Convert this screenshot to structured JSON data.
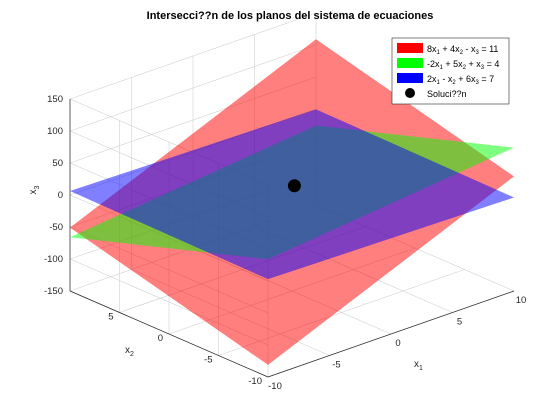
{
  "chart_data": {
    "type": "surface3d",
    "title": "Intersecci??n de los planos del sistema de ecuaciones",
    "xlabel": "x",
    "xlabel_sub": "1",
    "ylabel": "x",
    "ylabel_sub": "2",
    "zlabel": "x",
    "zlabel_sub": "3",
    "xlim": [
      -10,
      10
    ],
    "ylim": [
      -10,
      10
    ],
    "zlim": [
      -150,
      150
    ],
    "x_ticks": [
      "-10",
      "-5",
      "0",
      "5",
      "10"
    ],
    "y_ticks": [
      "-10",
      "-5",
      "0",
      "5"
    ],
    "z_ticks": [
      "-150",
      "-100",
      "-50",
      "0",
      "50",
      "100",
      "150"
    ],
    "grid": true,
    "legend_position": "top-right",
    "planes": [
      {
        "label_html": "8x<tspan baseline-shift='sub' font-size='6'>1</tspan> + 4x<tspan baseline-shift='sub' font-size='6'>2</tspan> - x<tspan baseline-shift='sub' font-size='6'>3</tspan> = 11",
        "legend_parts": [
          "8x",
          "1",
          " + 4x",
          "2",
          " - x",
          "3",
          " = 11"
        ],
        "color": "#ff0000",
        "coef": [
          8,
          4,
          -1
        ],
        "rhs": 11
      },
      {
        "legend_parts": [
          "-2x",
          "1",
          " + 5x",
          "2",
          " + x",
          "3",
          " = 4"
        ],
        "color": "#00ff00",
        "coef": [
          -2,
          5,
          1
        ],
        "rhs": 4
      },
      {
        "legend_parts": [
          "2x",
          "1",
          " - x",
          "2",
          " + 6x",
          "3",
          " = 7"
        ],
        "color": "#0000ff",
        "coef": [
          2,
          -1,
          6
        ],
        "rhs": 7
      }
    ],
    "solution": {
      "label": "Soluci??n",
      "x1": 1,
      "x2": 1,
      "x3": 1,
      "color": "#000000"
    }
  }
}
